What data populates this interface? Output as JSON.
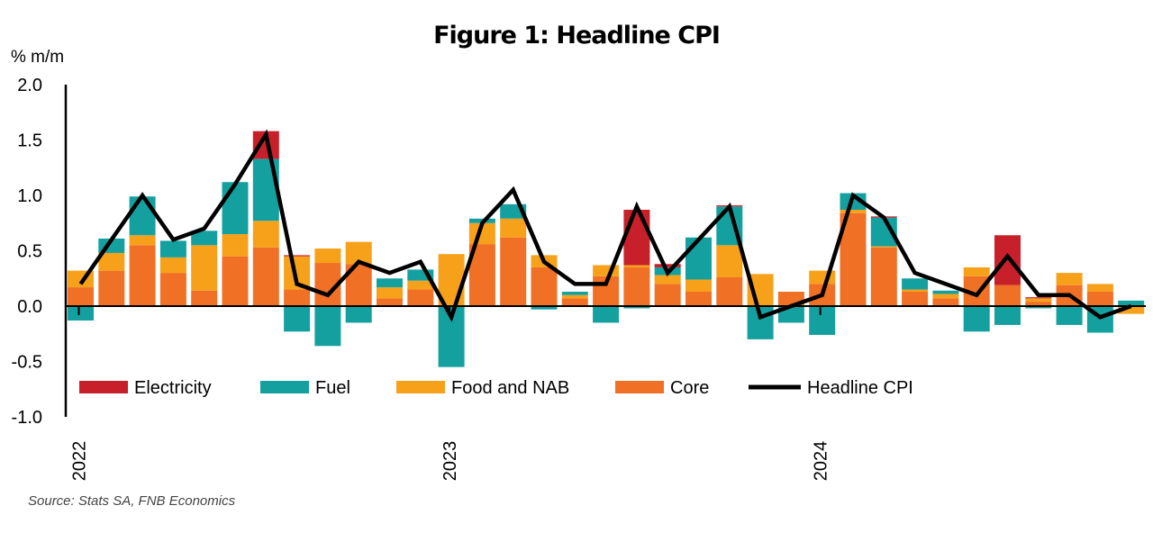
{
  "chart_data": {
    "type": "bar",
    "title": "Figure 1: Headline CPI",
    "ylabel": "% m/m",
    "source": "Source: Stats SA, FNB Economics",
    "ylim": [
      -1.0,
      2.0
    ],
    "yticks": [
      "2.0",
      "1.5",
      "1.0",
      "0.5",
      "0.0",
      "-0.5",
      "-1.0"
    ],
    "ytick_values": [
      2.0,
      1.5,
      1.0,
      0.5,
      0.0,
      -0.5,
      -1.0
    ],
    "year_labels": [
      {
        "label": "2022",
        "index": 0
      },
      {
        "label": "2023",
        "index": 12
      },
      {
        "label": "2024",
        "index": 24
      }
    ],
    "stacked": true,
    "legend_position": "bottom-inside",
    "series": [
      {
        "name": "Electricity",
        "color": "#c8202a",
        "values": [
          0,
          0,
          0,
          0,
          0,
          0,
          0.25,
          0.01,
          0,
          0,
          0,
          0,
          0,
          0,
          0,
          0,
          0,
          0,
          0.5,
          0.03,
          0,
          0.01,
          0,
          0,
          0,
          0,
          0.01,
          0,
          0,
          0,
          0.45,
          0.01,
          0,
          0,
          0
        ]
      },
      {
        "name": "Fuel",
        "color": "#15a0a0",
        "values": [
          -0.13,
          0.13,
          0.35,
          0.15,
          0.13,
          0.47,
          0.56,
          -0.23,
          -0.36,
          -0.15,
          0.08,
          0.1,
          -0.55,
          0.04,
          0.13,
          -0.03,
          0.03,
          -0.15,
          -0.02,
          0.07,
          0.38,
          0.35,
          -0.3,
          -0.15,
          -0.26,
          0.15,
          0.26,
          0.1,
          0.03,
          -0.23,
          -0.17,
          -0.02,
          -0.17,
          -0.24,
          0.05
        ]
      },
      {
        "name": "Food and NAB",
        "color": "#f7a11b",
        "values": [
          0.15,
          0.16,
          0.09,
          0.14,
          0.41,
          0.2,
          0.24,
          0.3,
          0.13,
          0.2,
          0.1,
          0.08,
          0.47,
          0.19,
          0.17,
          0.11,
          0.03,
          0.1,
          0.02,
          0.08,
          0.11,
          0.29,
          0.29,
          0,
          0.12,
          0.03,
          0.01,
          0.02,
          0.04,
          0.08,
          0,
          0.03,
          0.11,
          0.07,
          -0.07
        ]
      },
      {
        "name": "Core",
        "color": "#f07025",
        "values": [
          0.17,
          0.32,
          0.55,
          0.3,
          0.14,
          0.45,
          0.53,
          0.15,
          0.39,
          0.38,
          0.07,
          0.15,
          0,
          0.56,
          0.62,
          0.35,
          0.07,
          0.27,
          0.35,
          0.2,
          0.13,
          0.26,
          0,
          0.13,
          0.2,
          0.84,
          0.53,
          0.13,
          0.07,
          0.27,
          0.19,
          0.04,
          0.19,
          0.13,
          0
        ]
      },
      {
        "name": "Headline CPI",
        "color": "#000000",
        "kind": "line",
        "values": [
          0.2,
          0.6,
          1.0,
          0.6,
          0.7,
          1.1,
          1.55,
          0.2,
          0.1,
          0.4,
          0.3,
          0.4,
          -0.1,
          0.75,
          1.05,
          0.4,
          0.2,
          0.2,
          0.9,
          0.3,
          0.6,
          0.9,
          -0.1,
          0.0,
          0.1,
          1.0,
          0.8,
          0.3,
          0.2,
          0.1,
          0.45,
          0.1,
          0.1,
          -0.1,
          0.0
        ]
      }
    ]
  }
}
